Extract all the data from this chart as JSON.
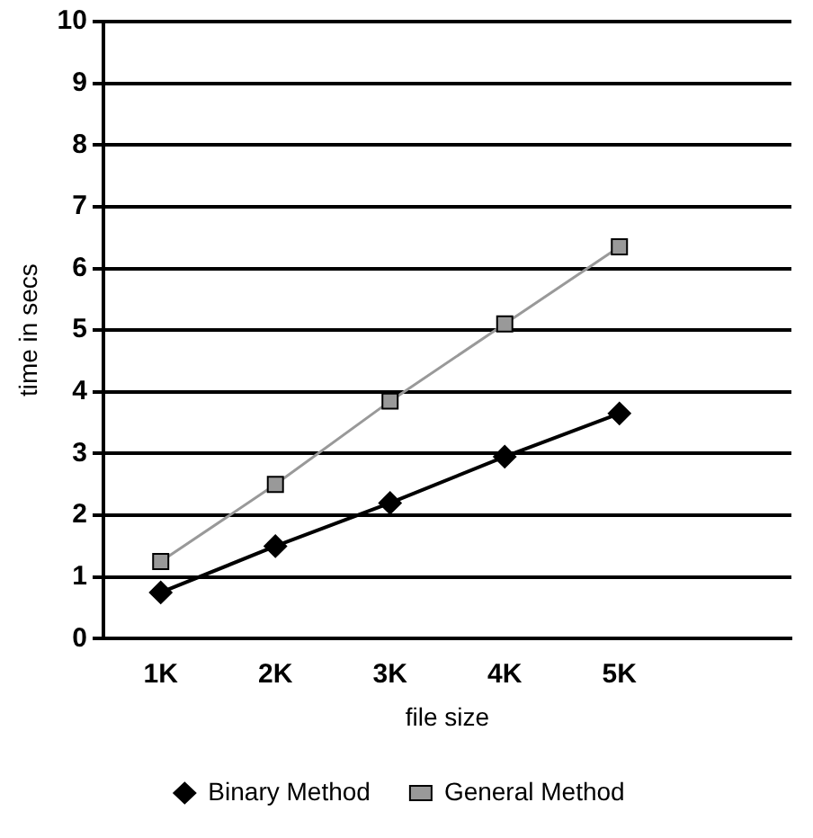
{
  "chart_data": {
    "type": "line",
    "xlabel": "file size",
    "ylabel": "time in secs",
    "categories": [
      "1K",
      "2K",
      "3K",
      "4K",
      "5K",
      null
    ],
    "series": [
      {
        "name": "Binary Method",
        "color": "#000000",
        "marker": "diamond",
        "values": [
          0.75,
          1.5,
          2.2,
          2.95,
          3.65,
          null
        ]
      },
      {
        "name": "General Method",
        "color": "#999999",
        "marker": "square",
        "values": [
          1.25,
          2.5,
          3.85,
          5.1,
          6.35,
          null
        ]
      }
    ],
    "ylim": [
      0,
      10
    ],
    "yticks": [
      0,
      1,
      2,
      3,
      4,
      5,
      6,
      7,
      8,
      9,
      10
    ],
    "grid": "y",
    "legend": "bottom"
  }
}
